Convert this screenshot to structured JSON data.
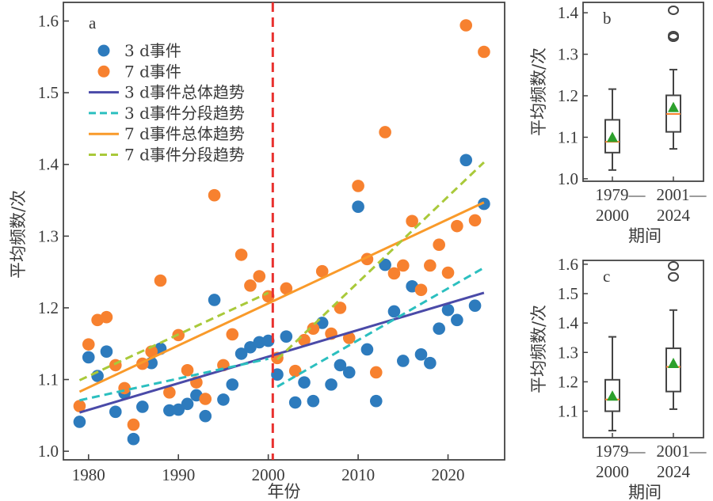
{
  "chart_data": [
    {
      "panel": "a",
      "type": "scatter",
      "title": "",
      "panel_label": "a",
      "xlabel": "年份",
      "ylabel": "平均频数/次",
      "xlim": [
        1977.2,
        2026.3
      ],
      "ylim": [
        0.988,
        1.626
      ],
      "xticks": [
        1980,
        1990,
        2000,
        2010,
        2020
      ],
      "xtick_labels": [
        "1980",
        "1990",
        "2000",
        "2010",
        "2020"
      ],
      "yticks": [
        1.0,
        1.1,
        1.2,
        1.3,
        1.4,
        1.5,
        1.6
      ],
      "ytick_labels": [
        "1.0",
        "1.1",
        "1.2",
        "1.3",
        "1.4",
        "1.5",
        "1.6"
      ],
      "split_line": {
        "x": 2000.5,
        "color": "#e8312f",
        "style": "dashed"
      },
      "legend": {
        "placement": "top-left",
        "entries": [
          {
            "label": "3 d事件",
            "kind": "marker",
            "color": "#2d7bbd"
          },
          {
            "label": "7 d事件",
            "kind": "marker",
            "color": "#f7812f"
          },
          {
            "label": "3 d事件总体趋势",
            "kind": "line",
            "color": "#4a4aa8",
            "dash": false
          },
          {
            "label": "3 d事件分段趋势",
            "kind": "line",
            "color": "#2bbfbf",
            "dash": true
          },
          {
            "label": "7 d事件总体趋势",
            "kind": "line",
            "color": "#f99a2a",
            "dash": false
          },
          {
            "label": "7 d事件分段趋势",
            "kind": "line",
            "color": "#a9c93a",
            "dash": true
          }
        ]
      },
      "series": [
        {
          "name": "3 d事件",
          "kind": "scatter",
          "color": "#2d7bbd",
          "x": [
            1979,
            1980,
            1981,
            1982,
            1983,
            1984,
            1985,
            1986,
            1987,
            1988,
            1989,
            1990,
            1991,
            1992,
            1993,
            1994,
            1995,
            1996,
            1997,
            1998,
            1999,
            2000,
            2001,
            2002,
            2003,
            2004,
            2005,
            2006,
            2007,
            2008,
            2009,
            2010,
            2011,
            2012,
            2013,
            2014,
            2015,
            2016,
            2017,
            2018,
            2019,
            2020,
            2021,
            2022,
            2023,
            2024
          ],
          "y": [
            1.041,
            1.131,
            1.105,
            1.139,
            1.055,
            1.081,
            1.017,
            1.062,
            1.123,
            1.143,
            1.057,
            1.058,
            1.066,
            1.078,
            1.049,
            1.211,
            1.072,
            1.093,
            1.136,
            1.145,
            1.152,
            1.154,
            1.107,
            1.16,
            1.068,
            1.096,
            1.07,
            1.179,
            1.093,
            1.12,
            1.11,
            1.341,
            1.142,
            1.07,
            1.26,
            1.195,
            1.126,
            1.23,
            1.135,
            1.123,
            1.171,
            1.197,
            1.183,
            1.406,
            1.203,
            1.345
          ]
        },
        {
          "name": "7 d事件",
          "kind": "scatter",
          "color": "#f7812f",
          "x": [
            1979,
            1980,
            1981,
            1982,
            1983,
            1984,
            1985,
            1986,
            1987,
            1988,
            1989,
            1990,
            1991,
            1992,
            1993,
            1994,
            1995,
            1996,
            1997,
            1998,
            1999,
            2000,
            2001,
            2002,
            2003,
            2004,
            2005,
            2006,
            2007,
            2008,
            2009,
            2010,
            2011,
            2012,
            2013,
            2014,
            2015,
            2016,
            2017,
            2018,
            2019,
            2020,
            2021,
            2022,
            2023,
            2024
          ],
          "y": [
            1.063,
            1.149,
            1.183,
            1.187,
            1.12,
            1.088,
            1.037,
            1.122,
            1.139,
            1.238,
            1.082,
            1.162,
            1.113,
            1.096,
            1.073,
            1.357,
            1.12,
            1.163,
            1.274,
            1.231,
            1.244,
            1.216,
            1.13,
            1.227,
            1.112,
            1.155,
            1.171,
            1.251,
            1.164,
            1.2,
            1.158,
            1.37,
            1.268,
            1.11,
            1.445,
            1.248,
            1.259,
            1.321,
            1.225,
            1.259,
            1.288,
            1.249,
            1.314,
            1.594,
            1.322,
            1.557
          ]
        },
        {
          "name": "3 d事件总体趋势",
          "kind": "line",
          "color": "#4a4aa8",
          "dash": false,
          "x": [
            1979,
            2024
          ],
          "y": [
            1.054,
            1.221
          ]
        },
        {
          "name": "3 d事件分段趋势 (1979—2000)",
          "kind": "line",
          "color": "#2bbfbf",
          "dash": true,
          "x": [
            1979,
            2000
          ],
          "y": [
            1.071,
            1.129
          ]
        },
        {
          "name": "3 d事件分段趋势 (2001—2024)",
          "kind": "line",
          "color": "#2bbfbf",
          "dash": true,
          "x": [
            2001,
            2024
          ],
          "y": [
            1.09,
            1.256
          ]
        },
        {
          "name": "7 d事件总体趋势",
          "kind": "line",
          "color": "#f99a2a",
          "dash": false,
          "x": [
            1979,
            2024
          ],
          "y": [
            1.083,
            1.347
          ]
        },
        {
          "name": "7 d事件分段趋势 (1979—2000)",
          "kind": "line",
          "color": "#a9c93a",
          "dash": true,
          "x": [
            1979,
            2000
          ],
          "y": [
            1.099,
            1.221
          ]
        },
        {
          "name": "7 d事件分段趋势 (2001—2024)",
          "kind": "line",
          "color": "#a9c93a",
          "dash": true,
          "x": [
            2001,
            2024
          ],
          "y": [
            1.128,
            1.403
          ]
        }
      ]
    },
    {
      "panel": "b",
      "type": "box",
      "panel_label": "b",
      "xlabel": "期间",
      "ylabel": "平均频数/次",
      "ylim": [
        0.994,
        1.425
      ],
      "yticks": [
        1.0,
        1.1,
        1.2,
        1.3,
        1.4
      ],
      "ytick_labels": [
        "1.0",
        "1.1",
        "1.2",
        "1.3",
        "1.4"
      ],
      "categories": [
        {
          "line1": "1979—",
          "line2": "2000"
        },
        {
          "line1": "2001—",
          "line2": "2024"
        }
      ],
      "boxes": [
        {
          "whisker_low": 1.021,
          "q1": 1.063,
          "median": 1.089,
          "q3": 1.142,
          "whisker_high": 1.216,
          "mean": 1.1,
          "outliers": []
        },
        {
          "whisker_low": 1.072,
          "q1": 1.113,
          "median": 1.156,
          "q3": 1.201,
          "whisker_high": 1.263,
          "mean": 1.172,
          "outliers": [
            1.341,
            1.345,
            1.406
          ]
        }
      ],
      "median_color": "#f7812f",
      "mean_color": "#2ca02c"
    },
    {
      "panel": "c",
      "type": "box",
      "panel_label": "c",
      "xlabel": "期间",
      "ylabel": "平均频数/次",
      "ylim": [
        1.01,
        1.613
      ],
      "yticks": [
        1.1,
        1.2,
        1.3,
        1.4,
        1.5,
        1.6
      ],
      "ytick_labels": [
        "1.1",
        "1.2",
        "1.3",
        "1.4",
        "1.5",
        "1.6"
      ],
      "categories": [
        {
          "line1": "1979—",
          "line2": "2000"
        },
        {
          "line1": "2001—",
          "line2": "2024"
        }
      ],
      "boxes": [
        {
          "whisker_low": 1.034,
          "q1": 1.1,
          "median": 1.14,
          "q3": 1.207,
          "whisker_high": 1.353,
          "mean": 1.152,
          "outliers": []
        },
        {
          "whisker_low": 1.107,
          "q1": 1.167,
          "median": 1.251,
          "q3": 1.314,
          "whisker_high": 1.444,
          "mean": 1.263,
          "outliers": [
            1.557,
            1.594
          ]
        }
      ],
      "median_color": "#f7812f",
      "mean_color": "#2ca02c"
    }
  ]
}
